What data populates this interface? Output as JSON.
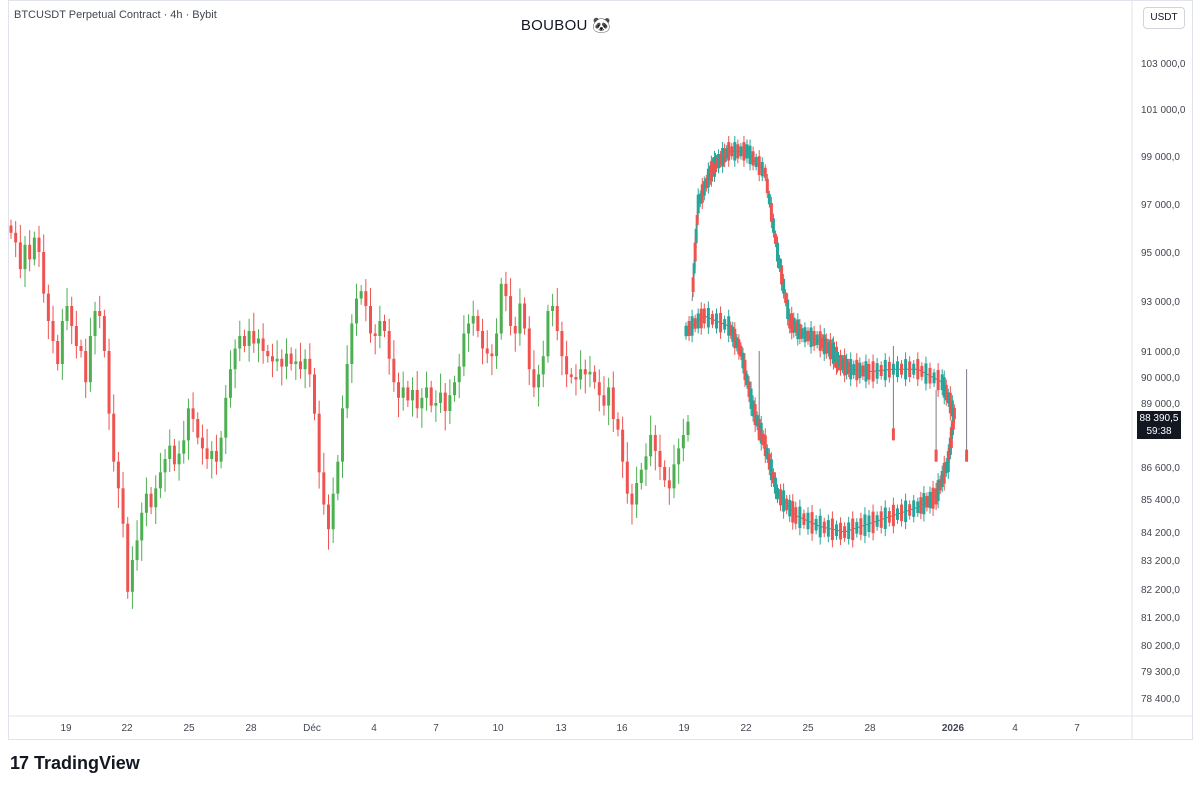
{
  "header": {
    "symbol": "BTCUSDT Perpetual Contract · 4h · Bybit",
    "title": "BOUBOU 🐼",
    "currency_button": "USDT"
  },
  "price_label": {
    "price": "88 390,5",
    "countdown": "59:38"
  },
  "branding": {
    "logo_mark": "17",
    "logo_text": "TradingView"
  },
  "colors": {
    "up": "#26a69a",
    "down": "#ef5350",
    "up_light": "#4caf50",
    "drawing": "#787b86"
  },
  "chart_data": {
    "type": "candlestick",
    "symbol": "BTCUSDT",
    "timeframe": "4h",
    "exchange": "Bybit",
    "y_axis_labels": [
      "103 000,0",
      "101 000,0",
      "99 000,0",
      "97 000,0",
      "95 000,0",
      "93 000,0",
      "91 000,0",
      "90 000,0",
      "89 000,0",
      "86 600,0",
      "85 400,0",
      "84 200,0",
      "83 200,0",
      "82 200,0",
      "81 200,0",
      "80 200,0",
      "79 300,0",
      "78 400,0"
    ],
    "x_axis_labels": [
      "19",
      "22",
      "25",
      "28",
      "Déc",
      "4",
      "7",
      "10",
      "13",
      "16",
      "19",
      "22",
      "25",
      "28",
      "2026",
      "4",
      "7"
    ],
    "last_price": 88390.5,
    "candles_close": [
      95800,
      95400,
      94300,
      95300,
      94700,
      95600,
      95000,
      93300,
      92200,
      91400,
      90500,
      92200,
      92800,
      92000,
      91200,
      91000,
      89800,
      91600,
      92600,
      92400,
      91000,
      88600,
      86800,
      85800,
      84500,
      82100,
      83200,
      83900,
      84900,
      85600,
      85100,
      85800,
      86400,
      86900,
      87400,
      86700,
      87100,
      87600,
      88800,
      88400,
      87700,
      87300,
      86900,
      87200,
      86800,
      87700,
      89200,
      90300,
      91100,
      91600,
      91200,
      91800,
      91300,
      91500,
      91000,
      90800,
      90600,
      90700,
      90400,
      90900,
      90500,
      90600,
      90300,
      90700,
      90100,
      88600,
      86400,
      85200,
      84300,
      85600,
      86800,
      88800,
      90500,
      92100,
      93100,
      93400,
      92800,
      91700,
      91600,
      92200,
      91800,
      90700,
      89800,
      89200,
      89600,
      89100,
      89500,
      88800,
      89200,
      89600,
      88900,
      89000,
      89400,
      88700,
      89300,
      89800,
      90400,
      91700,
      92100,
      92400,
      91800,
      91100,
      90900,
      90800,
      91700,
      93700,
      93200,
      92000,
      91700,
      92900,
      91900,
      90300,
      89600,
      90100,
      90800,
      92600,
      92800,
      91800,
      90800,
      90100,
      90000,
      89900,
      90300,
      90100,
      90200,
      89800,
      89300,
      88900,
      89600,
      88400,
      88000,
      86800,
      85600,
      85200,
      86000,
      86500,
      87000,
      87800,
      87200,
      86600,
      86100,
      85800,
      86700,
      87300,
      87800,
      88300
    ],
    "drawing": {
      "description_free": true,
      "segments_units": "data",
      "path_points": [
        [
          0,
          91800
        ],
        [
          3,
          92400
        ],
        [
          7,
          92000
        ],
        [
          9,
          91000
        ],
        [
          11,
          88800
        ],
        [
          13,
          87400
        ],
        [
          15,
          85600
        ],
        [
          18,
          84800
        ],
        [
          22,
          84400
        ],
        [
          26,
          84200
        ],
        [
          30,
          84500
        ],
        [
          34,
          84800
        ],
        [
          38,
          85100
        ],
        [
          41,
          85500
        ],
        [
          43,
          86800
        ],
        [
          44,
          88600
        ],
        [
          42,
          89800
        ],
        [
          38,
          90300
        ],
        [
          34,
          90300
        ],
        [
          30,
          90200
        ],
        [
          27,
          90300
        ],
        [
          25,
          90600
        ],
        [
          24,
          91000
        ],
        [
          22,
          91400
        ],
        [
          19,
          91700
        ],
        [
          17,
          92200
        ],
        [
          15,
          95000
        ],
        [
          13,
          98300
        ],
        [
          10,
          99200
        ],
        [
          7,
          99200
        ],
        [
          5,
          98700
        ],
        [
          4,
          98300
        ],
        [
          2,
          97000
        ],
        [
          1,
          93000
        ]
      ],
      "leg_lines": [
        [
          [
            12,
            91000
          ],
          [
            12,
            87600
          ]
        ],
        [
          [
            34,
            91200
          ],
          [
            34,
            87600
          ]
        ],
        [
          [
            41,
            89500
          ],
          [
            41,
            86800
          ]
        ],
        [
          [
            46,
            90300
          ],
          [
            46,
            86800
          ]
        ]
      ]
    }
  }
}
